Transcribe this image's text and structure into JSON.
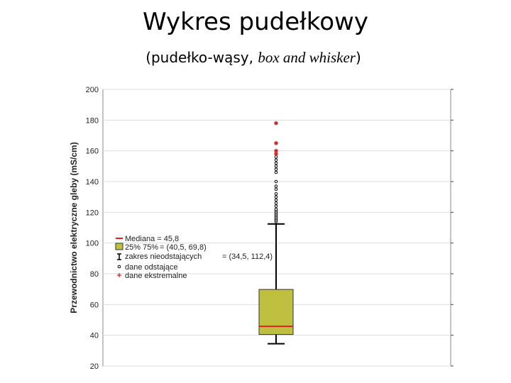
{
  "title": "Wykres pudełkowy",
  "subtitle": [
    "(pudełko-wąsy, ",
    "box and whisker",
    ")"
  ],
  "chart_data": {
    "type": "box",
    "ylabel": "Przewodnictwo elektryczne gleby (mS/cm)",
    "ylim": [
      20,
      200
    ],
    "yticks": [
      20,
      40,
      60,
      80,
      100,
      120,
      140,
      160,
      180,
      200
    ],
    "grid": true,
    "box": {
      "whisker_low": 34.5,
      "q1": 40.5,
      "median": 45.8,
      "q3": 69.8,
      "whisker_high": 112.4
    },
    "outliers": [
      114,
      115,
      116,
      117,
      118,
      119,
      120,
      121,
      122,
      124,
      126,
      128,
      130,
      132,
      135,
      137,
      140,
      146,
      148,
      150,
      152,
      154,
      156
    ],
    "extremes": [
      158,
      160,
      165,
      178
    ],
    "box_color": "#bfc040",
    "median_color": "#e02020",
    "extreme_color": "#cc2020",
    "legend": [
      "Mediana = 45,8",
      "25% 75%",
      "= (40,5, 69,8)",
      "zakres nieodstających",
      "= (34,5, 112,4)",
      "dane odstające",
      "dane ekstremalne"
    ]
  }
}
